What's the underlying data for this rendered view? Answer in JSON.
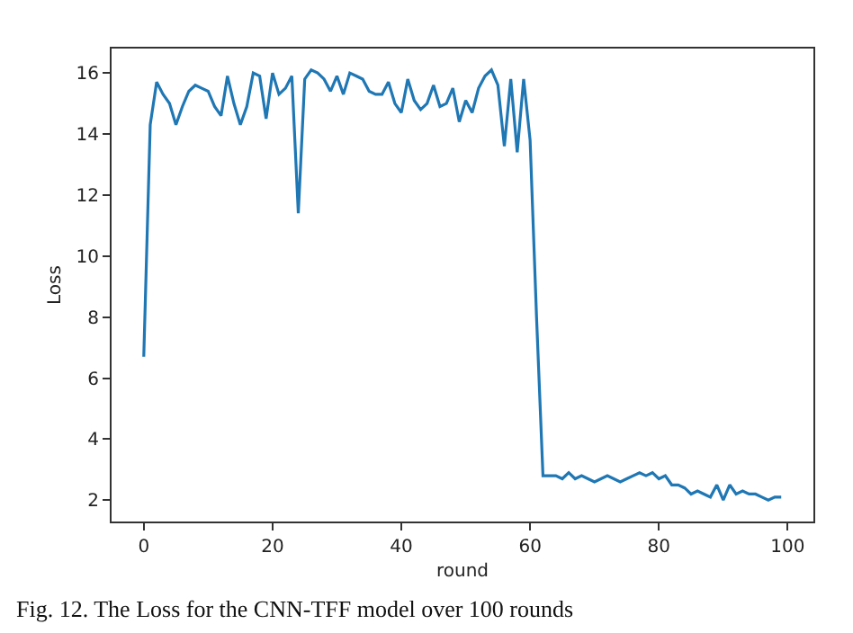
{
  "chart_data": {
    "type": "line",
    "xlabel": "round",
    "ylabel": "Loss",
    "annotations": [
      "Fig. 12. The Loss for the CNN-TFF model over 100 rounds"
    ],
    "x": [
      0,
      1,
      2,
      3,
      4,
      5,
      6,
      7,
      8,
      9,
      10,
      11,
      12,
      13,
      14,
      15,
      16,
      17,
      18,
      19,
      20,
      21,
      22,
      23,
      24,
      25,
      26,
      27,
      28,
      29,
      30,
      31,
      32,
      33,
      34,
      35,
      36,
      37,
      38,
      39,
      40,
      41,
      42,
      43,
      44,
      45,
      46,
      47,
      48,
      49,
      50,
      51,
      52,
      53,
      54,
      55,
      56,
      57,
      58,
      59,
      60,
      61,
      62,
      63,
      64,
      65,
      66,
      67,
      68,
      69,
      70,
      71,
      72,
      73,
      74,
      75,
      76,
      77,
      78,
      79,
      80,
      81,
      82,
      83,
      84,
      85,
      86,
      87,
      88,
      89,
      90,
      91,
      92,
      93,
      94,
      95,
      96,
      97,
      98,
      99
    ],
    "series": [
      {
        "color": "#1f77b4",
        "values": [
          6.7,
          14.3,
          15.7,
          15.3,
          15.0,
          14.3,
          14.9,
          15.4,
          15.6,
          15.5,
          15.4,
          14.9,
          14.6,
          15.9,
          15.0,
          14.3,
          14.9,
          16.0,
          15.9,
          14.5,
          16.0,
          15.3,
          15.5,
          15.9,
          11.4,
          15.8,
          16.1,
          16.0,
          15.8,
          15.4,
          15.9,
          15.3,
          16.0,
          15.9,
          15.8,
          15.4,
          15.3,
          15.3,
          15.7,
          15.0,
          14.7,
          15.8,
          15.1,
          14.8,
          15.0,
          15.6,
          14.9,
          15.0,
          15.5,
          14.4,
          15.1,
          14.7,
          15.5,
          15.9,
          16.1,
          15.6,
          13.6,
          15.8,
          13.4,
          15.8,
          13.8,
          8.0,
          2.8,
          2.8,
          2.8,
          2.7,
          2.9,
          2.7,
          2.8,
          2.7,
          2.6,
          2.7,
          2.8,
          2.7,
          2.6,
          2.7,
          2.8,
          2.9,
          2.8,
          2.9,
          2.7,
          2.8,
          2.5,
          2.5,
          2.4,
          2.2,
          2.3,
          2.2,
          2.1,
          2.5,
          2.0,
          2.5,
          2.2,
          2.3,
          2.2,
          2.2,
          2.1,
          2.0,
          2.1,
          2.1
        ]
      }
    ],
    "xlim": [
      -5,
      104
    ],
    "ylim": [
      1.3,
      16.8
    ],
    "xticks": [
      0,
      20,
      40,
      60,
      80,
      100
    ],
    "yticks": [
      2,
      4,
      6,
      8,
      10,
      12,
      14,
      16
    ],
    "marker": "none",
    "line_style": "solid"
  }
}
